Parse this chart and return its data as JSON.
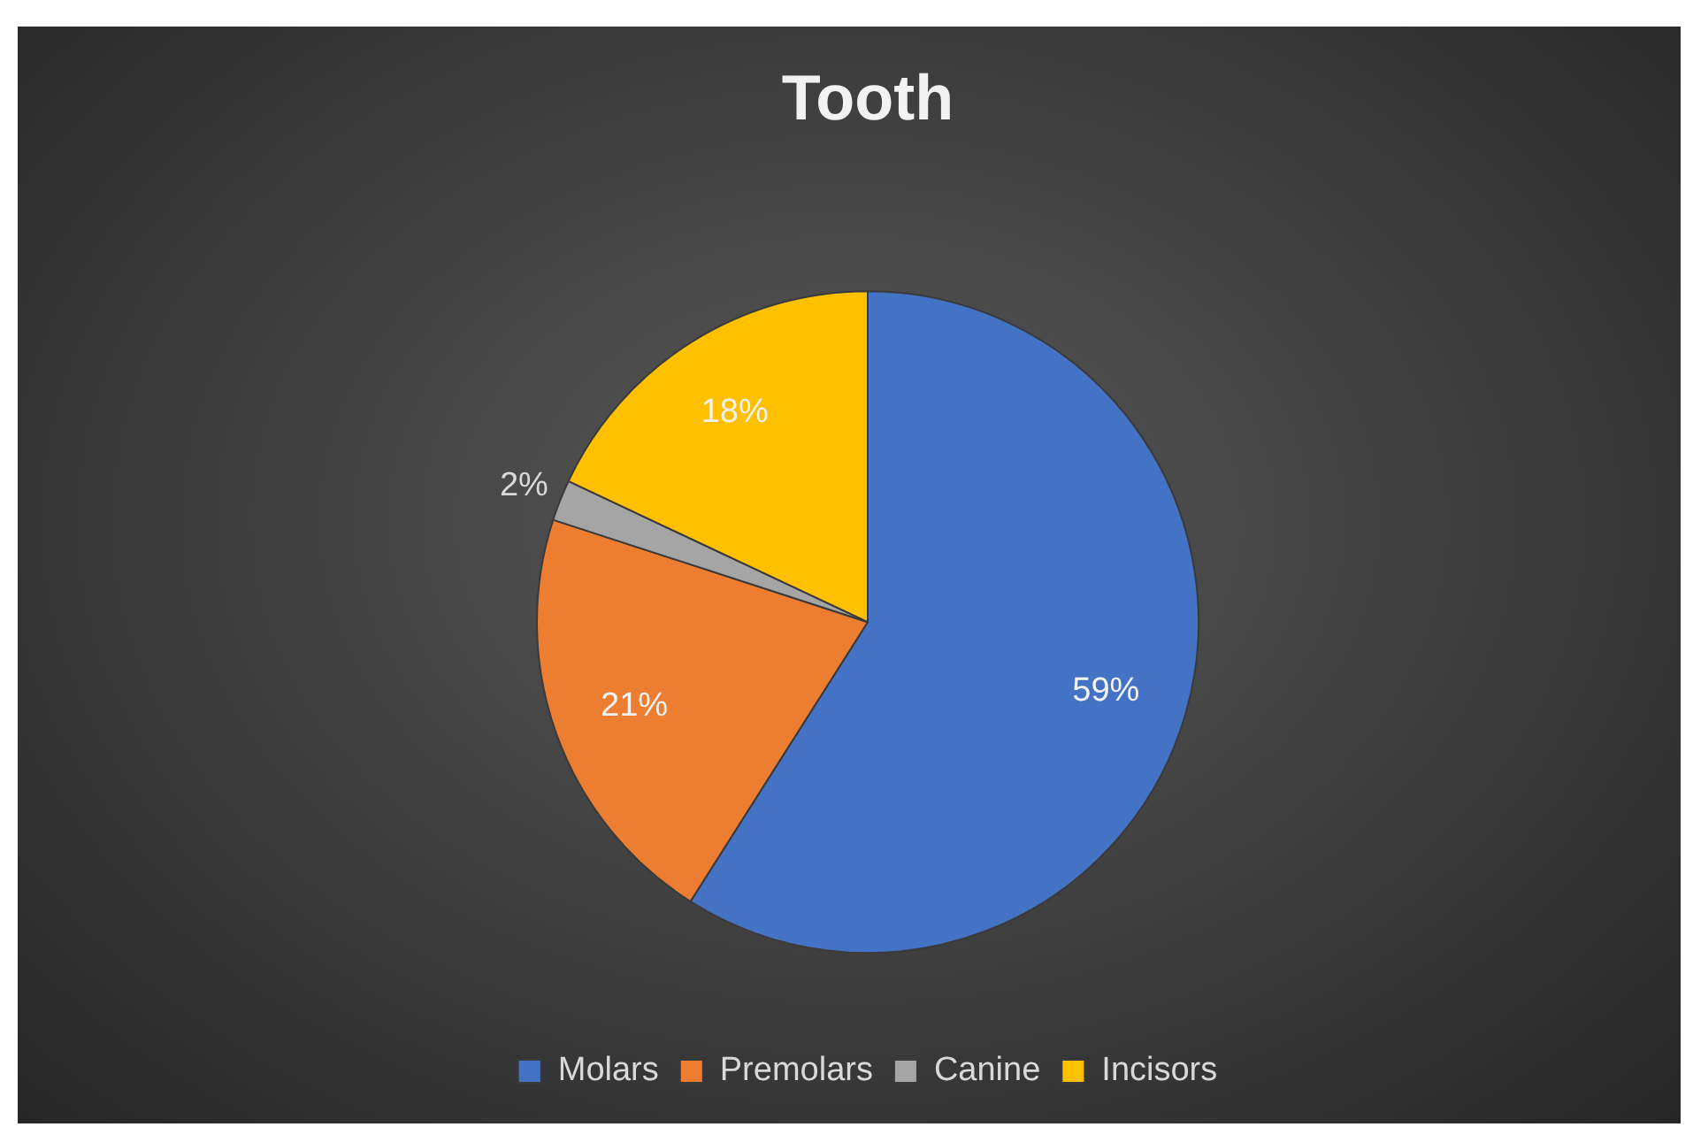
{
  "chart_data": {
    "type": "pie",
    "title": "Tooth",
    "categories": [
      "Molars",
      "Premolars",
      "Canine",
      "Incisors"
    ],
    "values": [
      59,
      21,
      2,
      18
    ],
    "colors": [
      "#4472c4",
      "#ed7d31",
      "#a5a5a5",
      "#ffc000"
    ],
    "value_labels": [
      "59%",
      "21%",
      "2%",
      "18%"
    ],
    "legend": "bottom"
  }
}
